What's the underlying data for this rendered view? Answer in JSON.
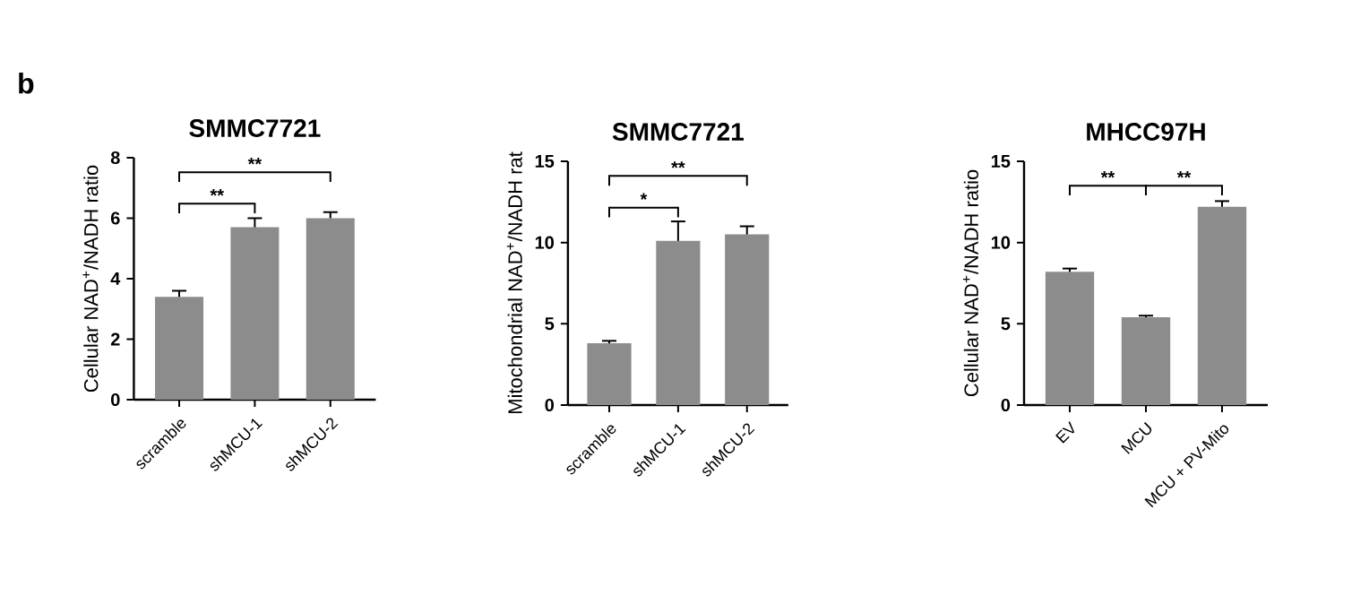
{
  "chart_data": [
    {
      "type": "bar",
      "title": "SMMC7721",
      "ylabel": "Cellular NAD$^{+}$/NADH ratio",
      "categories": [
        "scramble",
        "shMCU-1",
        "shMCU-2"
      ],
      "values": [
        3.4,
        5.7,
        6.0
      ],
      "errors": [
        0.2,
        0.3,
        0.2
      ],
      "color": "#8c8c8c",
      "ylim": [
        0,
        8
      ],
      "yticks": [
        0,
        2,
        4,
        6,
        8
      ],
      "annotations": [
        "b",
        "**",
        "**"
      ]
    },
    {
      "type": "bar",
      "title": "SMMC7721",
      "ylabel": "Mitochondrial NAD$^{+}$/NADH rat",
      "categories": [
        "scramble",
        "shMCU-1",
        "shMCU-2"
      ],
      "values": [
        3.8,
        10.1,
        10.5
      ],
      "errors": [
        0.15,
        1.2,
        0.5
      ],
      "color": "#8c8c8c",
      "ylim": [
        0,
        15
      ],
      "yticks": [
        0,
        5,
        10,
        15
      ],
      "annotations": [
        "*",
        "**"
      ]
    },
    {
      "type": "bar",
      "title": "MHCC97H",
      "ylabel": "Cellular NAD$^{+}$/NADH ratio",
      "categories": [
        "EV",
        "MCU",
        "MCU + PV-Mito"
      ],
      "values": [
        8.2,
        5.4,
        12.2
      ],
      "errors": [
        0.2,
        0.1,
        0.35
      ],
      "color": "#8c8c8c",
      "ylim": [
        0,
        15
      ],
      "yticks": [
        0,
        5,
        10,
        15
      ],
      "annotations": [
        "**",
        "**"
      ]
    }
  ]
}
